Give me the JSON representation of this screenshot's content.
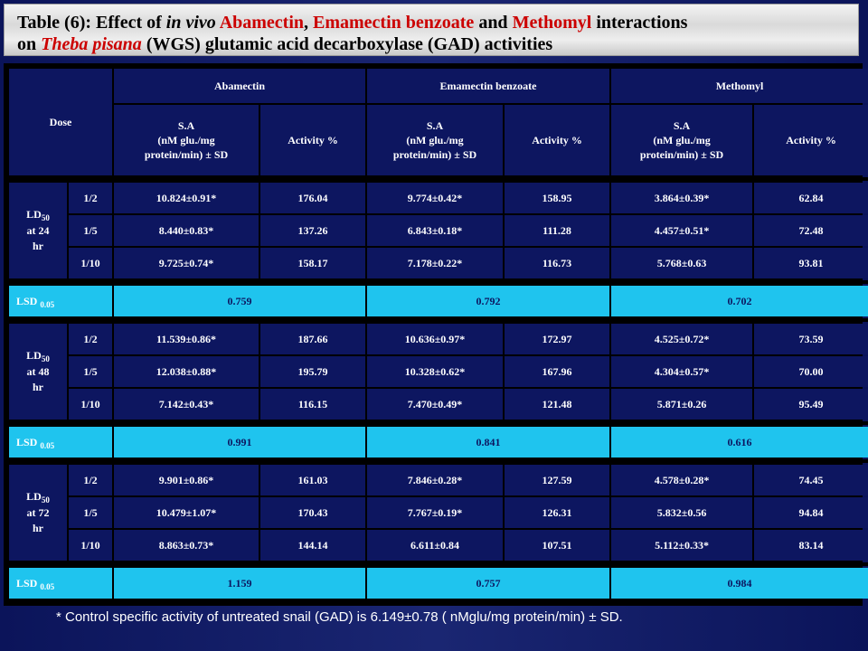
{
  "title": {
    "prefix": "Table (6):  Effect of ",
    "in_vivo": "in vivo",
    "abamectin": "Abamectin",
    "comma": ", ",
    "emamectin": "Emamectin benzoate",
    "and": " and ",
    "methomyl": "Methomyl",
    "suffix1": " interactions",
    "line2_on": "on ",
    "species": "Theba pisana",
    "line2_rest": " (WGS) glutamic acid decarboxylase (GAD) activities"
  },
  "header": {
    "dose": "Dose",
    "compounds": [
      "Abamectin",
      "Emamectin benzoate",
      "Methomyl"
    ],
    "sa_line1": "S.A",
    "sa_line2": "(nM glu./mg",
    "sa_line3": "protein/min) ± SD",
    "activity": "Activity %"
  },
  "groups": [
    {
      "ld": "LD",
      "ld_sub": "50",
      "at": "at 24",
      "unit": "hr",
      "rows": [
        {
          "dose": "1/2",
          "v": [
            "10.824±0.91*",
            "176.04",
            "9.774±0.42*",
            "158.95",
            "3.864±0.39*",
            "62.84"
          ]
        },
        {
          "dose": "1/5",
          "v": [
            "8.440±0.83*",
            "137.26",
            "6.843±0.18*",
            "111.28",
            "4.457±0.51*",
            "72.48"
          ]
        },
        {
          "dose": "1/10",
          "v": [
            "9.725±0.74*",
            "158.17",
            "7.178±0.22*",
            "116.73",
            "5.768±0.63",
            "93.81"
          ]
        }
      ],
      "lsd_label": "LSD",
      "lsd_sub": "0.05",
      "lsd": [
        "0.759",
        "0.792",
        "0.702"
      ]
    },
    {
      "ld": "LD",
      "ld_sub": "50",
      "at": "at 48",
      "unit": "hr",
      "rows": [
        {
          "dose": "1/2",
          "v": [
            "11.539±0.86*",
            "187.66",
            "10.636±0.97*",
            "172.97",
            "4.525±0.72*",
            "73.59"
          ]
        },
        {
          "dose": "1/5",
          "v": [
            "12.038±0.88*",
            "195.79",
            "10.328±0.62*",
            "167.96",
            "4.304±0.57*",
            "70.00"
          ]
        },
        {
          "dose": "1/10",
          "v": [
            "7.142±0.43*",
            "116.15",
            "7.470±0.49*",
            "121.48",
            "5.871±0.26",
            "95.49"
          ]
        }
      ],
      "lsd_label": "LSD",
      "lsd_sub": "0.05",
      "lsd": [
        "0.991",
        "0.841",
        "0.616"
      ]
    },
    {
      "ld": "LD",
      "ld_sub": "50",
      "at": "at 72",
      "unit": "hr",
      "rows": [
        {
          "dose": "1/2",
          "v": [
            "9.901±0.86*",
            "161.03",
            "7.846±0.28*",
            "127.59",
            "4.578±0.28*",
            "74.45"
          ]
        },
        {
          "dose": "1/5",
          "v": [
            "10.479±1.07*",
            "170.43",
            "7.767±0.19*",
            "126.31",
            "5.832±0.56",
            "94.84"
          ]
        },
        {
          "dose": "1/10",
          "v": [
            "8.863±0.73*",
            "144.14",
            "6.611±0.84",
            "107.51",
            "5.112±0.33*",
            "83.14"
          ]
        }
      ],
      "lsd_label": "LSD",
      "lsd_sub": "0.05",
      "lsd": [
        "1.159",
        "0.757",
        "0.984"
      ]
    }
  ],
  "footnote": "* Control specific activity of untreated snail (GAD) is 6.149±0.78 ( nMglu/mg protein/min) ± SD.",
  "colors": {
    "background": "#0f1a5e",
    "cell": "#0d1660",
    "lsd_row": "#1fc4ee",
    "title_red": "#cc0000"
  }
}
